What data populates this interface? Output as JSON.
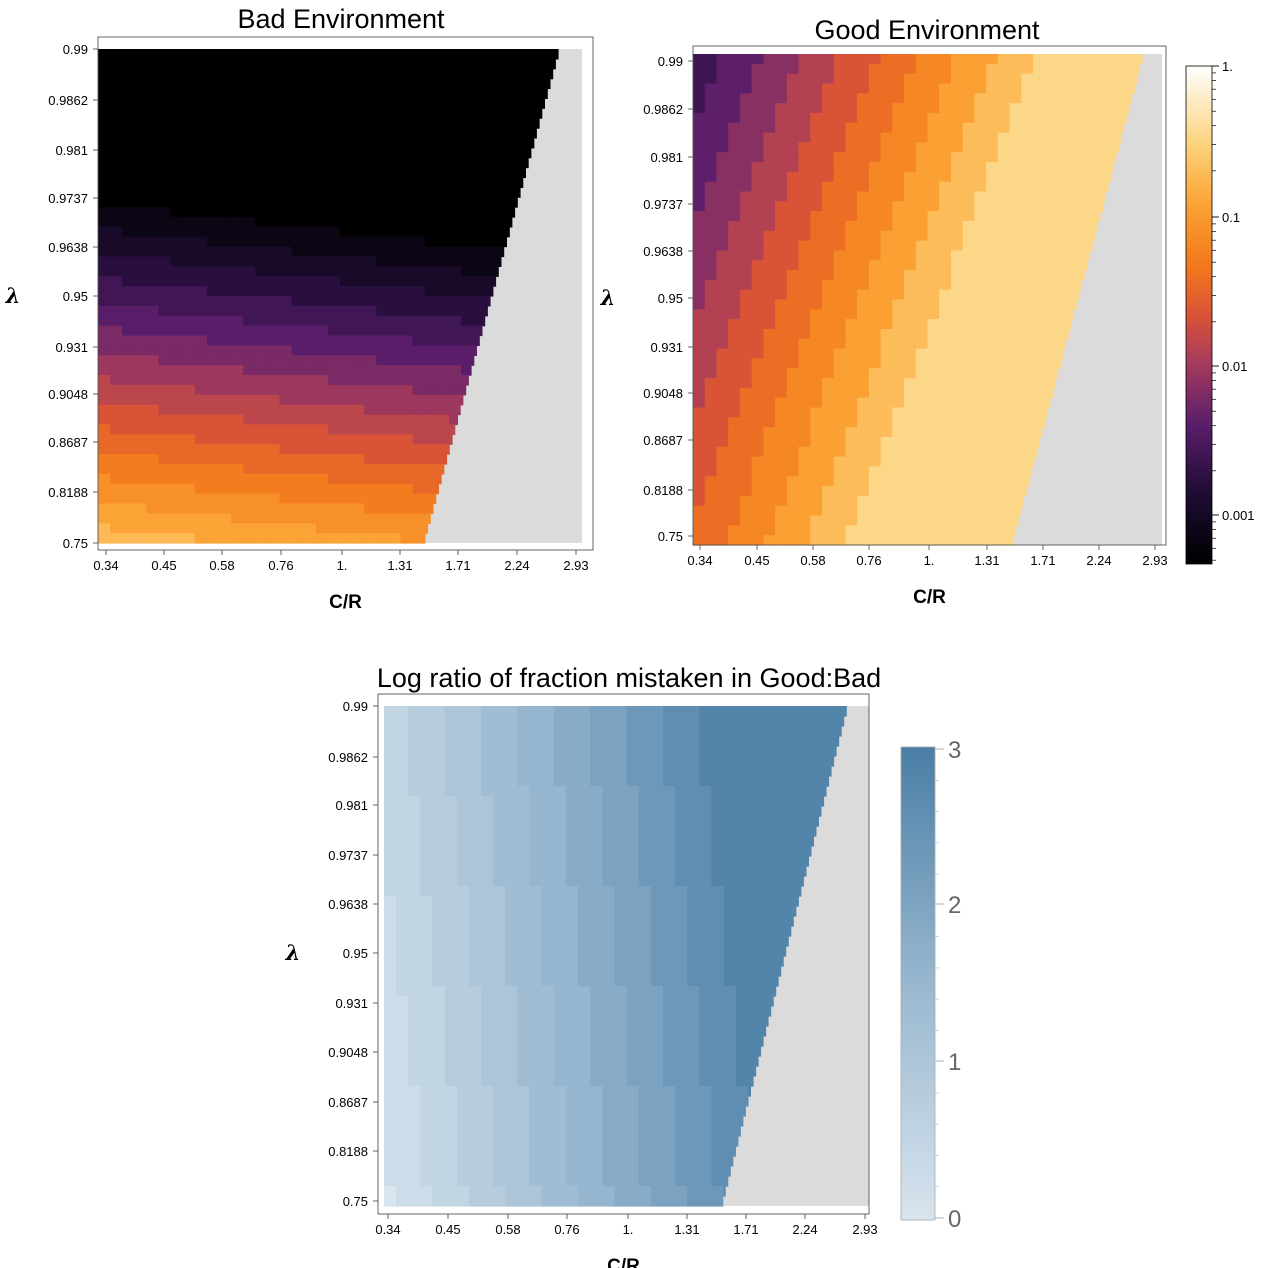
{
  "chart_data": [
    {
      "type": "heatmap",
      "title": "Bad Environment",
      "xlabel": "C/R",
      "ylabel": "λ",
      "x_ticks": [
        "0.34",
        "0.45",
        "0.58",
        "0.76",
        "1.",
        "1.31",
        "1.71",
        "2.24",
        "2.93"
      ],
      "y_ticks": [
        "0.99",
        "0.9862",
        "0.981",
        "0.9737",
        "0.9638",
        "0.95",
        "0.931",
        "0.9048",
        "0.8687",
        "0.8188",
        "0.75"
      ],
      "color_scale": "log fraction mistaken, shared with Good Environment colorbar",
      "grey_region": "no data for high C/R, boundary rising from C/R ≈ 1.5 at λ=0.75 to ≈ 2.9 at λ=0.99",
      "color_bands": [
        "near 0.0005 (black) for λ ≥ 0.975",
        "≈0.001–0.01 (purple) near λ 0.96",
        "≈0.01–0.05 (orange) near λ 0.93",
        "≈0.1 (light orange) near λ 0.75"
      ],
      "notes": "colors vary mainly with λ and weakly with C/R"
    },
    {
      "type": "heatmap",
      "title": "Good Environment",
      "xlabel": "C/R",
      "ylabel": "λ",
      "x_ticks": [
        "0.34",
        "0.45",
        "0.58",
        "0.76",
        "1.",
        "1.31",
        "1.71",
        "2.24",
        "2.93"
      ],
      "y_ticks": [
        "0.99",
        "0.9862",
        "0.981",
        "0.9737",
        "0.9638",
        "0.95",
        "0.931",
        "0.9048",
        "0.8687",
        "0.8188",
        "0.75"
      ],
      "colorbar": {
        "scale": "log",
        "ticks": [
          "1.",
          "0.1",
          "0.01",
          "0.001"
        ],
        "range": [
          0.0005,
          1.0
        ],
        "colors": [
          "#000000",
          "#3d1456",
          "#8a2c6e",
          "#cc4a48",
          "#f28a22",
          "#f9b640",
          "#fde7a8",
          "#ffffff"
        ]
      },
      "grey_region": "no data for high C/R, boundary rising from C/R ≈ 1.45 at λ=0.75 to ≈ 2.9 at λ=0.99",
      "color_bands": [
        "≈0.0005–0.001 (black/purple) at low C/R, high λ",
        "≈0.01 (red-orange) bands",
        "≈0.1 (orange)",
        "≈0.3 (pale yellow) near grey boundary"
      ],
      "notes": "diagonal bands: value increases with C/R and decreases with λ"
    },
    {
      "type": "heatmap",
      "title": "Log ratio of fraction mistaken in Good:Bad",
      "xlabel": "C/R",
      "ylabel": "λ",
      "x_ticks": [
        "0.34",
        "0.45",
        "0.58",
        "0.76",
        "1.",
        "1.31",
        "1.71",
        "2.24",
        "2.93"
      ],
      "y_ticks": [
        "0.99",
        "0.9862",
        "0.981",
        "0.9737",
        "0.9638",
        "0.95",
        "0.931",
        "0.9048",
        "0.8687",
        "0.8188",
        "0.75"
      ],
      "colorbar": {
        "scale": "linear",
        "ticks": [
          "3",
          "2",
          "1",
          "0"
        ],
        "range": [
          0,
          3
        ],
        "colors": [
          "#d8e4ee",
          "#4a7ea6"
        ]
      },
      "grey_region": "no data for high C/R, boundary rising from C/R ≈ 1.8 at λ=0.75 to ≈ 2.9 at λ=0.99",
      "color_bands": [
        "≈0.1–0.3 at low C/R",
        "≈1.0 at C/R ≈ 1",
        "≈2.0–2.5 at high C/R, high λ"
      ],
      "notes": "value increases with C/R, and with λ"
    }
  ]
}
